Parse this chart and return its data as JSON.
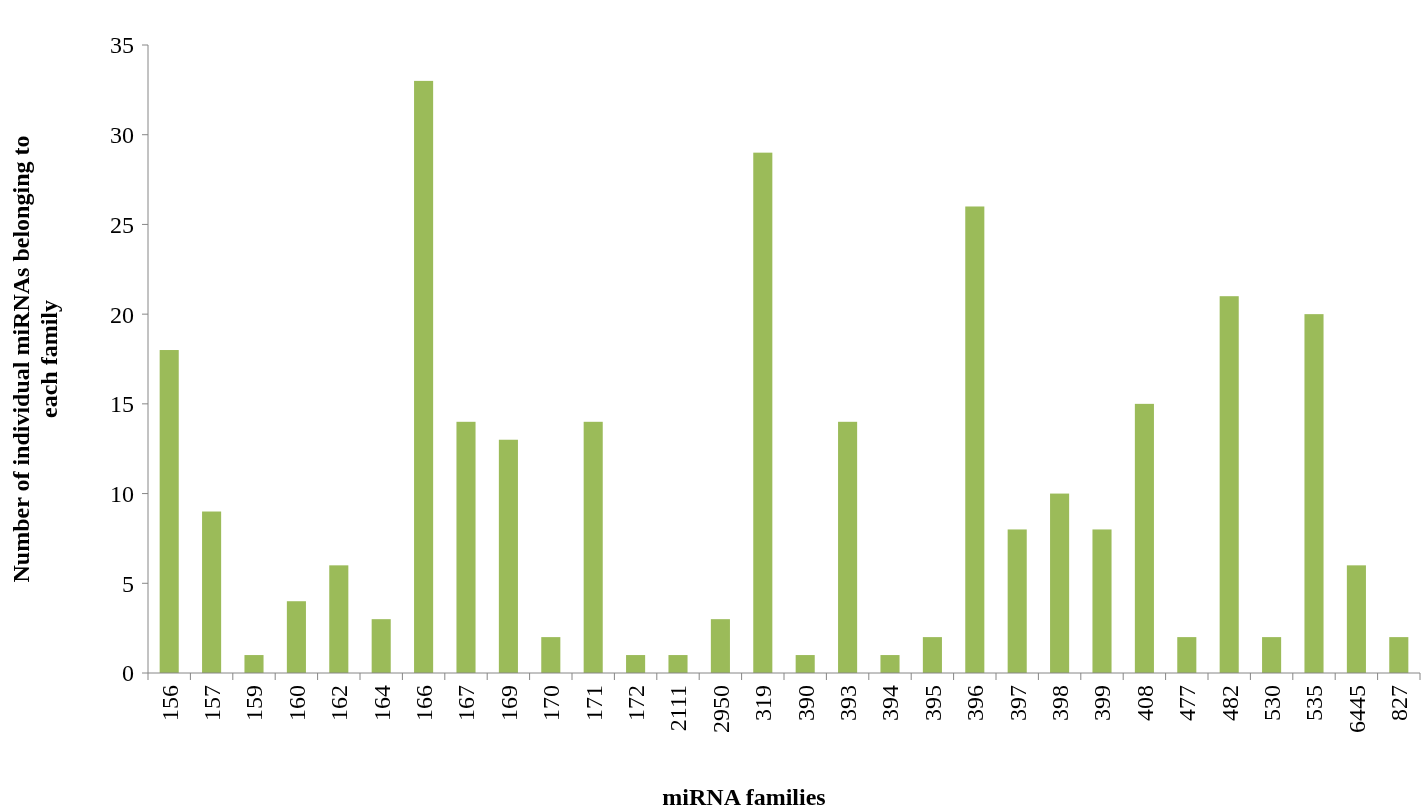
{
  "chart_data": {
    "type": "bar",
    "xlabel": "miRNA families",
    "ylabel": "Number of individual miRNAs belonging to each family",
    "categories": [
      "156",
      "157",
      "159",
      "160",
      "162",
      "164",
      "166",
      "167",
      "169",
      "170",
      "171",
      "172",
      "2111",
      "2950",
      "319",
      "390",
      "393",
      "394",
      "395",
      "396",
      "397",
      "398",
      "399",
      "408",
      "477",
      "482",
      "530",
      "535",
      "6445",
      "827"
    ],
    "values": [
      18,
      9,
      1,
      4,
      6,
      3,
      33,
      14,
      13,
      2,
      14,
      1,
      1,
      3,
      29,
      1,
      14,
      1,
      2,
      26,
      8,
      10,
      8,
      15,
      2,
      21,
      2,
      20,
      6,
      2
    ],
    "color": "#9bbb59",
    "ylim": [
      0,
      35
    ],
    "yticks": [
      0,
      5,
      10,
      15,
      20,
      25,
      30,
      35
    ],
    "grid": false
  }
}
